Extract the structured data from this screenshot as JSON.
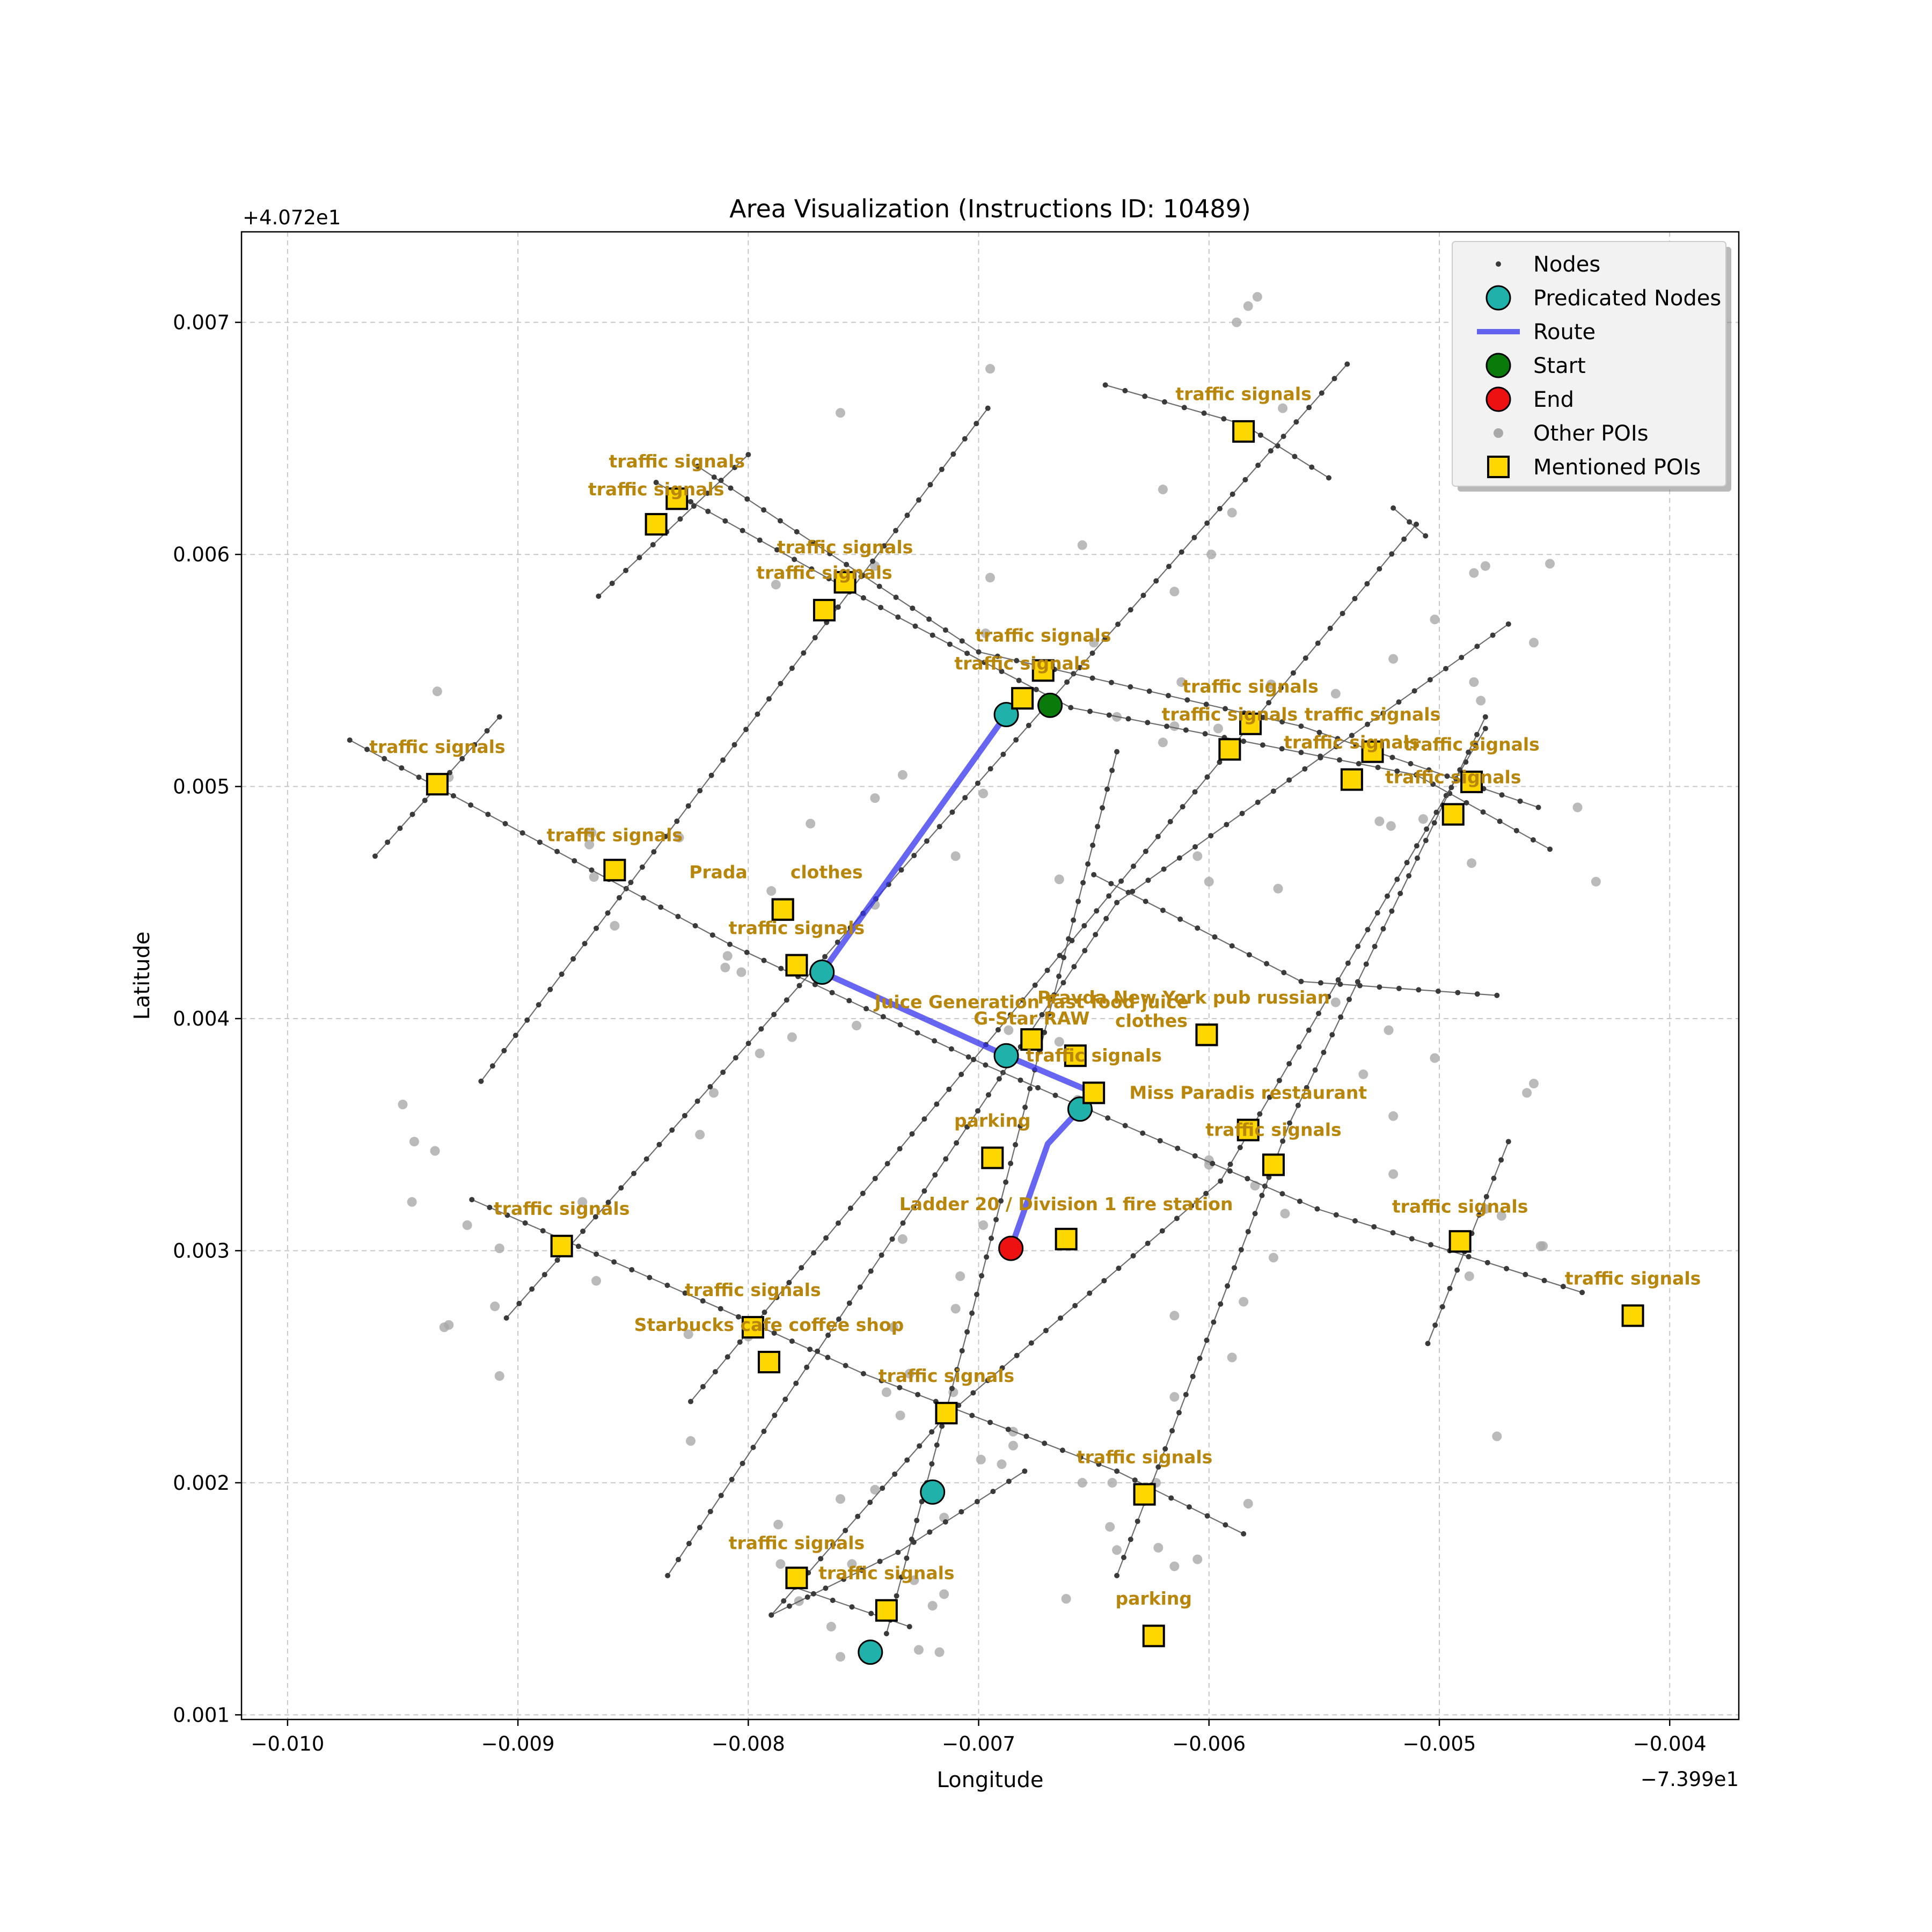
{
  "chart_data": {
    "type": "scatter",
    "title": "Area Visualization (Instructions ID: 10489)",
    "xlabel": "Longitude",
    "ylabel": "Latitude",
    "x_offset_label": "−7.399e1",
    "y_offset_label": "+4.072e1",
    "xlim": [
      -0.0102,
      -0.0037
    ],
    "ylim": [
      0.00098,
      0.00739
    ],
    "xticks": [
      -0.01,
      -0.009,
      -0.008,
      -0.007,
      -0.006,
      -0.005,
      -0.004
    ],
    "xtick_labels": [
      "−0.010",
      "−0.009",
      "−0.008",
      "−0.007",
      "−0.006",
      "−0.005",
      "−0.004"
    ],
    "yticks": [
      0.001,
      0.002,
      0.003,
      0.004,
      0.005,
      0.006,
      0.007
    ],
    "ytick_labels": [
      "0.001",
      "0.002",
      "0.003",
      "0.004",
      "0.005",
      "0.006",
      "0.007"
    ],
    "grid": true,
    "legend_position": "top-right",
    "legend": [
      {
        "label": "Nodes",
        "symbol": "node"
      },
      {
        "label": "Predicated Nodes",
        "symbol": "pred"
      },
      {
        "label": "Route",
        "symbol": "route"
      },
      {
        "label": "Start",
        "symbol": "start"
      },
      {
        "label": "End",
        "symbol": "end"
      },
      {
        "label": "Other POIs",
        "symbol": "other"
      },
      {
        "label": "Mentioned POIs",
        "symbol": "poi"
      }
    ],
    "colors": {
      "node": "#3a3a3a",
      "edge": "#555555",
      "predicated": "#20b2aa",
      "route": "#3333ee",
      "start": "#0a7a0a",
      "end": "#ee1111",
      "other_poi": "#a9a9a9",
      "poi_fill": "#ffd700",
      "poi_label": "#b8860b"
    },
    "streets": [
      [
        [
          -0.00973,
          0.0052
        ],
        [
          -0.00808,
          0.00432
        ],
        [
          -0.00697,
          0.0038
        ],
        [
          -0.00553,
          0.00318
        ],
        [
          -0.00438,
          0.00282
        ]
      ],
      [
        [
          -0.0084,
          0.00631
        ],
        [
          -0.00735,
          0.00573
        ],
        [
          -0.0066,
          0.00534
        ],
        [
          -0.0051,
          0.00505
        ],
        [
          -0.00452,
          0.00473
        ]
      ],
      [
        [
          -0.00822,
          0.00638
        ],
        [
          -0.007,
          0.00558
        ],
        [
          -0.0056,
          0.00526
        ],
        [
          -0.00457,
          0.00491
        ]
      ],
      [
        [
          -0.0092,
          0.00322
        ],
        [
          -0.00812,
          0.00275
        ],
        [
          -0.0075,
          0.00247
        ],
        [
          -0.0064,
          0.00205
        ],
        [
          -0.00585,
          0.00178
        ]
      ],
      [
        [
          -0.0079,
          0.00143
        ],
        [
          -0.00735,
          0.0017
        ],
        [
          -0.0068,
          0.00205
        ]
      ],
      [
        [
          -0.0078,
          0.00155
        ],
        [
          -0.0073,
          0.00138
        ]
      ],
      [
        [
          -0.0065,
          0.00462
        ],
        [
          -0.0056,
          0.00416
        ],
        [
          -0.00475,
          0.0041
        ]
      ],
      [
        [
          -0.00645,
          0.00673
        ],
        [
          -0.00585,
          0.00656
        ],
        [
          -0.00548,
          0.00633
        ]
      ],
      [
        [
          -0.0052,
          0.0062
        ],
        [
          -0.00506,
          0.00608
        ]
      ],
      [
        [
          -0.00962,
          0.0047
        ],
        [
          -0.00908,
          0.0053
        ]
      ],
      [
        [
          -0.00865,
          0.00582
        ],
        [
          -0.008,
          0.00643
        ]
      ],
      [
        [
          -0.00916,
          0.00373
        ],
        [
          -0.00696,
          0.00663
        ]
      ],
      [
        [
          -0.00905,
          0.00271
        ],
        [
          -0.0054,
          0.00682
        ]
      ],
      [
        [
          -0.00825,
          0.00235
        ],
        [
          -0.0051,
          0.00613
        ]
      ],
      [
        [
          -0.00835,
          0.0016
        ],
        [
          -0.0064,
          0.0045
        ],
        [
          -0.0047,
          0.0057
        ]
      ],
      [
        [
          -0.0079,
          0.00143
        ],
        [
          -0.00715,
          0.00228
        ],
        [
          -0.00595,
          0.0033
        ],
        [
          -0.0048,
          0.00525
        ]
      ],
      [
        [
          -0.0074,
          0.00135
        ],
        [
          -0.00705,
          0.00265
        ],
        [
          -0.0064,
          0.00515
        ]
      ],
      [
        [
          -0.0064,
          0.0016
        ],
        [
          -0.00565,
          0.00355
        ],
        [
          -0.0048,
          0.0053
        ]
      ],
      [
        [
          -0.00505,
          0.0026
        ],
        [
          -0.0047,
          0.00347
        ]
      ]
    ],
    "route": [
      [
        -0.00768,
        0.0042
      ],
      [
        -0.00688,
        0.00531
      ],
      [
        -0.00768,
        0.0042
      ],
      [
        -0.00688,
        0.00384
      ],
      [
        -0.0065,
        0.00368
      ],
      [
        -0.00656,
        0.00361
      ],
      [
        -0.0067,
        0.00346
      ],
      [
        -0.00686,
        0.00301
      ]
    ],
    "start": {
      "x": -0.00669,
      "y": 0.00535
    },
    "end": {
      "x": -0.00686,
      "y": 0.00301
    },
    "predicated_nodes": [
      {
        "x": -0.00688,
        "y": 0.00531
      },
      {
        "x": -0.00768,
        "y": 0.0042
      },
      {
        "x": -0.00688,
        "y": 0.00384
      },
      {
        "x": -0.00656,
        "y": 0.00361
      },
      {
        "x": -0.0072,
        "y": 0.00196
      },
      {
        "x": -0.00747,
        "y": 0.00127
      }
    ],
    "other_pois": [
      [
        -0.0076,
        0.00661
      ],
      [
        -0.00695,
        0.0068
      ],
      [
        -0.00588,
        0.007
      ],
      [
        -0.00583,
        0.00707
      ],
      [
        -0.00579,
        0.00711
      ],
      [
        -0.00568,
        0.00663
      ],
      [
        -0.0059,
        0.00618
      ],
      [
        -0.0062,
        0.00628
      ],
      [
        -0.00655,
        0.00604
      ],
      [
        -0.00599,
        0.006
      ],
      [
        -0.00615,
        0.00584
      ],
      [
        -0.00695,
        0.0059
      ],
      [
        -0.00745,
        0.00595
      ],
      [
        -0.00788,
        0.00587
      ],
      [
        -0.0065,
        0.00562
      ],
      [
        -0.00697,
        0.00566
      ],
      [
        -0.00573,
        0.00544
      ],
      [
        -0.00596,
        0.00525
      ],
      [
        -0.00612,
        0.00545
      ],
      [
        -0.00545,
        0.0054
      ],
      [
        -0.0052,
        0.00555
      ],
      [
        -0.00502,
        0.00572
      ],
      [
        -0.00485,
        0.00592
      ],
      [
        -0.0048,
        0.00595
      ],
      [
        -0.00459,
        0.00562
      ],
      [
        -0.00452,
        0.00596
      ],
      [
        -0.00485,
        0.00545
      ],
      [
        -0.00482,
        0.00537
      ],
      [
        -0.0044,
        0.00491
      ],
      [
        -0.00432,
        0.00459
      ],
      [
        -0.00486,
        0.00467
      ],
      [
        -0.00507,
        0.00486
      ],
      [
        -0.00526,
        0.00485
      ],
      [
        -0.00521,
        0.00483
      ],
      [
        -0.0062,
        0.00519
      ],
      [
        -0.00615,
        0.00526
      ],
      [
        -0.0064,
        0.0053
      ],
      [
        -0.00773,
        0.00484
      ],
      [
        -0.00733,
        0.00505
      ],
      [
        -0.00745,
        0.00495
      ],
      [
        -0.00698,
        0.00497
      ],
      [
        -0.0071,
        0.0047
      ],
      [
        -0.00665,
        0.0046
      ],
      [
        -0.00605,
        0.0047
      ],
      [
        -0.006,
        0.00459
      ],
      [
        -0.0057,
        0.00456
      ],
      [
        -0.00545,
        0.00407
      ],
      [
        -0.00522,
        0.00395
      ],
      [
        -0.0079,
        0.00455
      ],
      [
        -0.0083,
        0.00478
      ],
      [
        -0.00745,
        0.00449
      ],
      [
        -0.00809,
        0.00427
      ],
      [
        -0.00803,
        0.0042
      ],
      [
        -0.0081,
        0.00422
      ],
      [
        -0.00781,
        0.00392
      ],
      [
        -0.00795,
        0.00385
      ],
      [
        -0.00753,
        0.00397
      ],
      [
        -0.00687,
        0.00395
      ],
      [
        -0.00665,
        0.0039
      ],
      [
        -0.00657,
        0.00365
      ],
      [
        -0.0093,
        0.00504
      ],
      [
        -0.00935,
        0.00541
      ],
      [
        -0.00868,
        0.0048
      ],
      [
        -0.00869,
        0.00475
      ],
      [
        -0.00867,
        0.00461
      ],
      [
        -0.00858,
        0.0044
      ],
      [
        -0.0095,
        0.00363
      ],
      [
        -0.00945,
        0.00347
      ],
      [
        -0.00936,
        0.00343
      ],
      [
        -0.00946,
        0.00321
      ],
      [
        -0.00922,
        0.00311
      ],
      [
        -0.00908,
        0.00301
      ],
      [
        -0.0091,
        0.00276
      ],
      [
        -0.0093,
        0.00268
      ],
      [
        -0.00932,
        0.00267
      ],
      [
        -0.00908,
        0.00246
      ],
      [
        -0.00872,
        0.00321
      ],
      [
        -0.00866,
        0.00287
      ],
      [
        -0.00821,
        0.0035
      ],
      [
        -0.00815,
        0.00368
      ],
      [
        -0.008,
        0.00263
      ],
      [
        -0.00826,
        0.00264
      ],
      [
        -0.00825,
        0.00218
      ],
      [
        -0.00737,
        0.00267
      ],
      [
        -0.0073,
        0.00247
      ],
      [
        -0.0074,
        0.00239
      ],
      [
        -0.00734,
        0.00229
      ],
      [
        -0.00733,
        0.00305
      ],
      [
        -0.00698,
        0.00311
      ],
      [
        -0.00708,
        0.00289
      ],
      [
        -0.0071,
        0.00275
      ],
      [
        -0.00711,
        0.00239
      ],
      [
        -0.00699,
        0.0021
      ],
      [
        -0.0069,
        0.00208
      ],
      [
        -0.00685,
        0.00216
      ],
      [
        -0.00685,
        0.00222
      ],
      [
        -0.00715,
        0.00185
      ],
      [
        -0.00715,
        0.00152
      ],
      [
        -0.0072,
        0.00147
      ],
      [
        -0.00728,
        0.00158
      ],
      [
        -0.00726,
        0.00128
      ],
      [
        -0.00717,
        0.00127
      ],
      [
        -0.0076,
        0.00125
      ],
      [
        -0.00778,
        0.00149
      ],
      [
        -0.00764,
        0.00138
      ],
      [
        -0.00786,
        0.00165
      ],
      [
        -0.00787,
        0.00182
      ],
      [
        -0.0076,
        0.00193
      ],
      [
        -0.00755,
        0.00165
      ],
      [
        -0.00745,
        0.00197
      ],
      [
        -0.00655,
        0.002
      ],
      [
        -0.00623,
        0.002
      ],
      [
        -0.00643,
        0.00181
      ],
      [
        -0.0064,
        0.00171
      ],
      [
        -0.00622,
        0.00172
      ],
      [
        -0.00615,
        0.00164
      ],
      [
        -0.00605,
        0.00167
      ],
      [
        -0.00583,
        0.00191
      ],
      [
        -0.00662,
        0.0015
      ],
      [
        -0.00642,
        0.002
      ],
      [
        -0.00615,
        0.00272
      ],
      [
        -0.00615,
        0.00237
      ],
      [
        -0.0059,
        0.00254
      ],
      [
        -0.00585,
        0.00278
      ],
      [
        -0.00567,
        0.00316
      ],
      [
        -0.00572,
        0.00297
      ],
      [
        -0.006,
        0.00339
      ],
      [
        -0.006,
        0.00337
      ],
      [
        -0.0058,
        0.00328
      ],
      [
        -0.0052,
        0.00333
      ],
      [
        -0.0052,
        0.00358
      ],
      [
        -0.00533,
        0.00376
      ],
      [
        -0.00502,
        0.00383
      ],
      [
        -0.00462,
        0.00368
      ],
      [
        -0.00459,
        0.00372
      ],
      [
        -0.00455,
        0.00302
      ],
      [
        -0.00456,
        0.00302
      ],
      [
        -0.00473,
        0.00315
      ],
      [
        -0.00487,
        0.00289
      ],
      [
        -0.00475,
        0.0022
      ],
      [
        -0.0048,
        0.00318
      ]
    ],
    "mentioned_pois": [
      {
        "name": "traffic signals",
        "x": -0.00585,
        "y": 0.00653,
        "lx": -0.00585,
        "ly": 0.00669
      },
      {
        "name": "traffic signals",
        "x": -0.00831,
        "y": 0.00624,
        "lx": -0.00831,
        "ly": 0.0064
      },
      {
        "name": "traffic signals",
        "x": -0.0084,
        "y": 0.00613,
        "lx": -0.0084,
        "ly": 0.00628
      },
      {
        "name": "traffic signals",
        "x": -0.00758,
        "y": 0.00588,
        "lx": -0.00758,
        "ly": 0.00603
      },
      {
        "name": "traffic signals",
        "x": -0.00767,
        "y": 0.00576,
        "lx": -0.00767,
        "ly": 0.00592
      },
      {
        "name": "traffic signals",
        "x": -0.00672,
        "y": 0.0055,
        "lx": -0.00672,
        "ly": 0.00565
      },
      {
        "name": "traffic signals",
        "x": -0.00681,
        "y": 0.00538,
        "lx": -0.00681,
        "ly": 0.00553
      },
      {
        "name": "traffic signals",
        "x": -0.00582,
        "y": 0.00527,
        "lx": -0.00582,
        "ly": 0.00543
      },
      {
        "name": "traffic signals",
        "x": -0.00591,
        "y": 0.00516,
        "lx": -0.00591,
        "ly": 0.00531
      },
      {
        "name": "traffic signals",
        "x": -0.00529,
        "y": 0.00515,
        "lx": -0.00529,
        "ly": 0.00531
      },
      {
        "name": "traffic signals",
        "x": -0.00538,
        "y": 0.00503,
        "lx": -0.00538,
        "ly": 0.00519
      },
      {
        "name": "traffic signals",
        "x": -0.00486,
        "y": 0.00502,
        "lx": -0.00486,
        "ly": 0.00518
      },
      {
        "name": "traffic signals",
        "x": -0.00494,
        "y": 0.00488,
        "lx": -0.00494,
        "ly": 0.00504
      },
      {
        "name": "traffic signals",
        "x": -0.00935,
        "y": 0.00501,
        "lx": -0.00935,
        "ly": 0.00517
      },
      {
        "name": "traffic signals",
        "x": -0.00858,
        "y": 0.00464,
        "lx": -0.00858,
        "ly": 0.00479
      },
      {
        "name": "Prada",
        "x": -0.00785,
        "y": 0.00447,
        "lx": -0.00813,
        "ly": 0.00463
      },
      {
        "name": "clothes",
        "x": -0.00785,
        "y": 0.00447,
        "lx": -0.00766,
        "ly": 0.00463
      },
      {
        "name": "traffic signals",
        "x": -0.00779,
        "y": 0.00423,
        "lx": -0.00779,
        "ly": 0.00439
      },
      {
        "name": "Juice Generation fast food juice",
        "x": -0.00677,
        "y": 0.00391,
        "lx": -0.00677,
        "ly": 0.00407
      },
      {
        "name": "G-Star RAW",
        "x": -0.00658,
        "y": 0.00384,
        "lx": -0.00677,
        "ly": 0.004
      },
      {
        "name": "Pravda New York pub russian",
        "x": -0.00601,
        "y": 0.00393,
        "lx": -0.00611,
        "ly": 0.00409
      },
      {
        "name": "clothes",
        "x": -0.00601,
        "y": 0.00393,
        "lx": -0.00625,
        "ly": 0.00399
      },
      {
        "name": "traffic signals",
        "x": -0.0065,
        "y": 0.00368,
        "lx": -0.0065,
        "ly": 0.00384
      },
      {
        "name": "Miss Paradis restaurant",
        "x": -0.00583,
        "y": 0.00352,
        "lx": -0.00583,
        "ly": 0.00368
      },
      {
        "name": "traffic signals",
        "x": -0.00572,
        "y": 0.00337,
        "lx": -0.00572,
        "ly": 0.00352
      },
      {
        "name": "parking",
        "x": -0.00694,
        "y": 0.0034,
        "lx": -0.00694,
        "ly": 0.00356
      },
      {
        "name": "Ladder 20 / Division 1 fire station",
        "x": -0.00662,
        "y": 0.00305,
        "lx": -0.00662,
        "ly": 0.0032
      },
      {
        "name": "traffic signals",
        "x": -0.00881,
        "y": 0.00302,
        "lx": -0.00881,
        "ly": 0.00318
      },
      {
        "name": "traffic signals",
        "x": -0.00491,
        "y": 0.00304,
        "lx": -0.00491,
        "ly": 0.00319
      },
      {
        "name": "traffic signals",
        "x": -0.00416,
        "y": 0.00272,
        "lx": -0.00416,
        "ly": 0.00288
      },
      {
        "name": "traffic signals",
        "x": -0.00798,
        "y": 0.00267,
        "lx": -0.00798,
        "ly": 0.00283
      },
      {
        "name": "Starbucks cafe coffee shop",
        "x": -0.00791,
        "y": 0.00252,
        "lx": -0.00791,
        "ly": 0.00268
      },
      {
        "name": "traffic signals",
        "x": -0.00714,
        "y": 0.0023,
        "lx": -0.00714,
        "ly": 0.00246
      },
      {
        "name": "traffic signals",
        "x": -0.00628,
        "y": 0.00195,
        "lx": -0.00628,
        "ly": 0.00211
      },
      {
        "name": "traffic signals",
        "x": -0.00779,
        "y": 0.00159,
        "lx": -0.00779,
        "ly": 0.00174
      },
      {
        "name": "traffic signals",
        "x": -0.0074,
        "y": 0.00145,
        "lx": -0.0074,
        "ly": 0.00161
      },
      {
        "name": "parking",
        "x": -0.00624,
        "y": 0.00134,
        "lx": -0.00624,
        "ly": 0.0015
      }
    ]
  }
}
